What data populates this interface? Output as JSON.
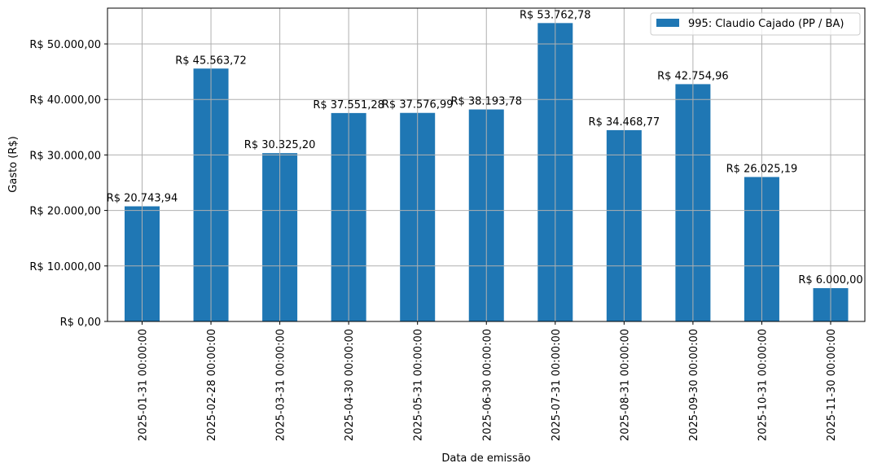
{
  "chart_data": {
    "type": "bar",
    "title": "",
    "xlabel": "Data de emissão",
    "ylabel": "Gasto (R$)",
    "categories": [
      "2025-01-31 00:00:00",
      "2025-02-28 00:00:00",
      "2025-03-31 00:00:00",
      "2025-04-30 00:00:00",
      "2025-05-31 00:00:00",
      "2025-06-30 00:00:00",
      "2025-07-31 00:00:00",
      "2025-08-31 00:00:00",
      "2025-09-30 00:00:00",
      "2025-10-31 00:00:00",
      "2025-11-30 00:00:00"
    ],
    "series": [
      {
        "name": "995: Claudio Cajado (PP / BA)",
        "color": "#1f77b4",
        "values": [
          20743.94,
          45563.72,
          30325.2,
          37551.28,
          37576.99,
          38193.78,
          53762.78,
          34468.77,
          42754.96,
          26025.19,
          6000.0
        ],
        "labels": [
          "R$ 20.743,94",
          "R$ 45.563,72",
          "R$ 30.325,20",
          "R$ 37.551,28",
          "R$ 37.576,99",
          "R$ 38.193,78",
          "R$ 53.762,78",
          "R$ 34.468,77",
          "R$ 42.754,96",
          "R$ 26.025,19",
          "R$ 6.000,00"
        ]
      }
    ],
    "yticks": [
      0,
      10000,
      20000,
      30000,
      40000,
      50000
    ],
    "ytick_labels": [
      "R$ 0,00",
      "R$ 10.000,00",
      "R$ 20.000,00",
      "R$ 30.000,00",
      "R$ 40.000,00",
      "R$ 50.000,00"
    ],
    "ylim": [
      0,
      56451
    ],
    "grid": true,
    "legend_position": "upper right"
  }
}
